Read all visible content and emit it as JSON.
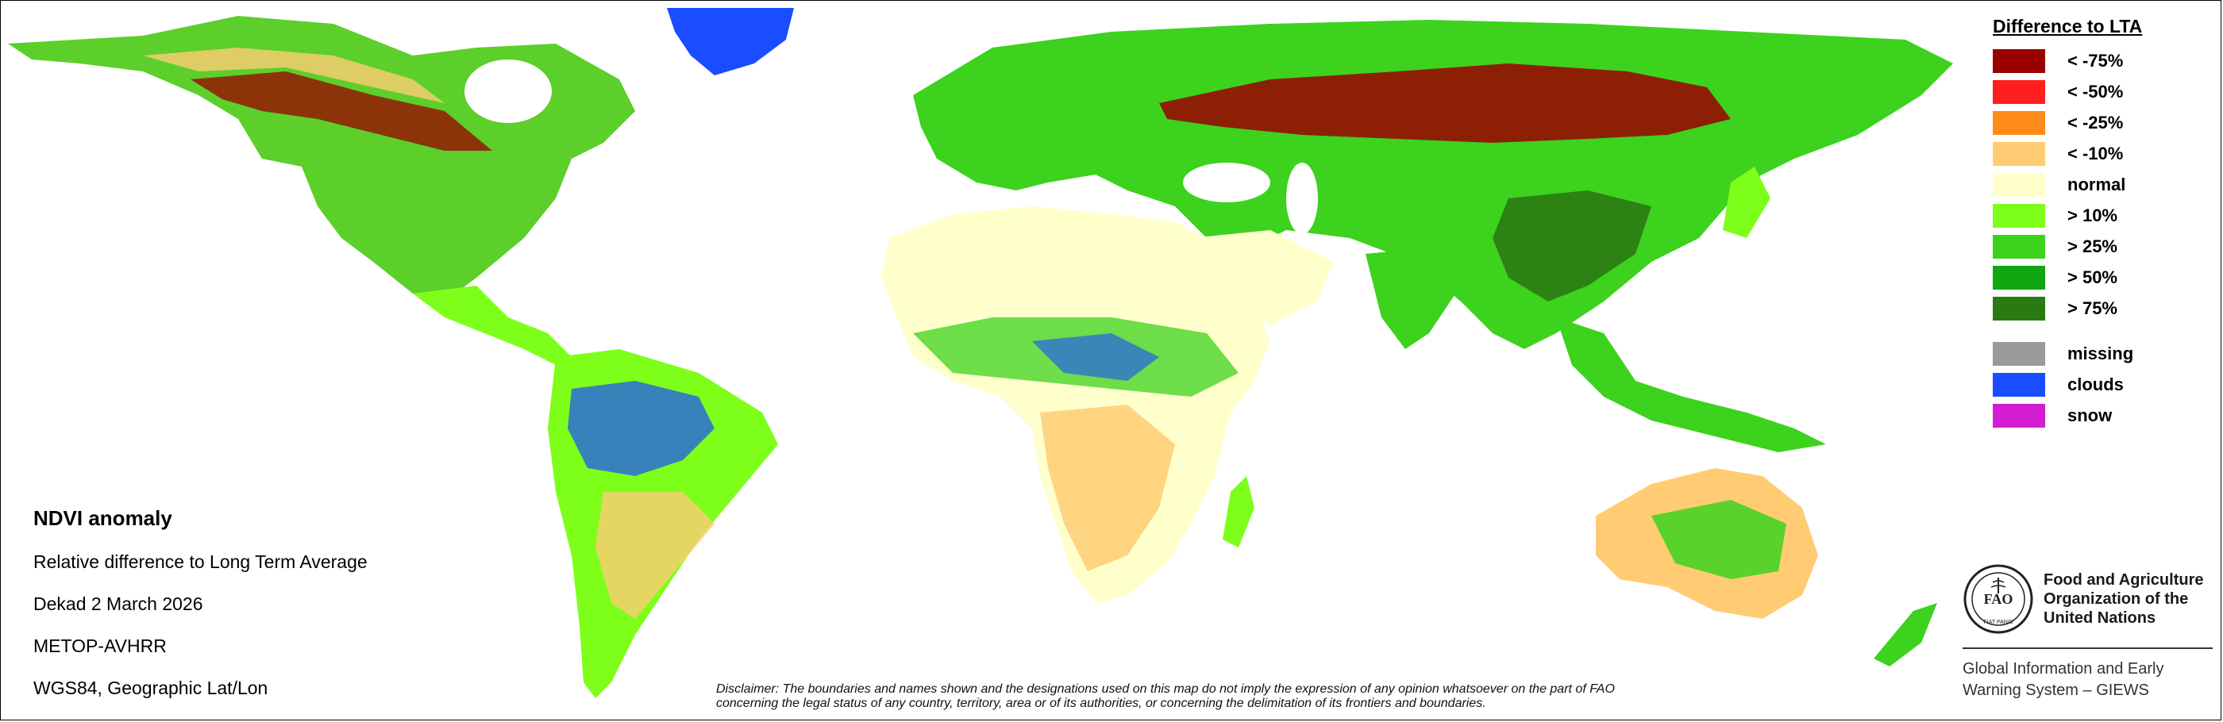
{
  "legend": {
    "title": "Difference to LTA",
    "items": [
      {
        "label": "< -75%",
        "color": "#9b0000"
      },
      {
        "label": "< -50%",
        "color": "#ff1f1f"
      },
      {
        "label": "< -25%",
        "color": "#ff8c1a"
      },
      {
        "label": "< -10%",
        "color": "#ffcc73"
      },
      {
        "label": "normal",
        "color": "#ffffcc"
      },
      {
        "label": "> 10%",
        "color": "#7dff1a"
      },
      {
        "label": "> 25%",
        "color": "#3cd21e"
      },
      {
        "label": "> 50%",
        "color": "#11a611"
      },
      {
        "label": "> 75%",
        "color": "#2a7a12"
      }
    ],
    "extra_items": [
      {
        "label": "missing",
        "color": "#9a9a9a"
      },
      {
        "label": "clouds",
        "color": "#1a4dff"
      },
      {
        "label": "snow",
        "color": "#d21ed2"
      }
    ]
  },
  "info": {
    "title": "NDVI anomaly",
    "lines": [
      "Relative difference to Long Term Average",
      "Dekad 2 March 2026",
      "METOP-AVHRR",
      "WGS84, Geographic Lat/Lon"
    ]
  },
  "disclaimer": {
    "line1": "Disclaimer: The boundaries and names shown and the designations used on this map do not imply the expression of any opinion whatsoever on the part of FAO",
    "line2": "concerning the legal status of any country, territory, area or of its authorities, or concerning the delimitation of its frontiers and boundaries."
  },
  "fao": {
    "name_line1": "Food and Agriculture",
    "name_line2": "Organization of the",
    "name_line3": "United Nations",
    "emblem_letters": "FAO",
    "emblem_motto": "FIAT PANIS",
    "system_line1": "Global Information and Early",
    "system_line2": "Warning System – GIEWS"
  },
  "colors": {
    "land_normal": "#ffffcc",
    "land_green": "#3cd21e",
    "land_dark_green": "#11a611",
    "greenland_snow": "#1a4dff"
  }
}
